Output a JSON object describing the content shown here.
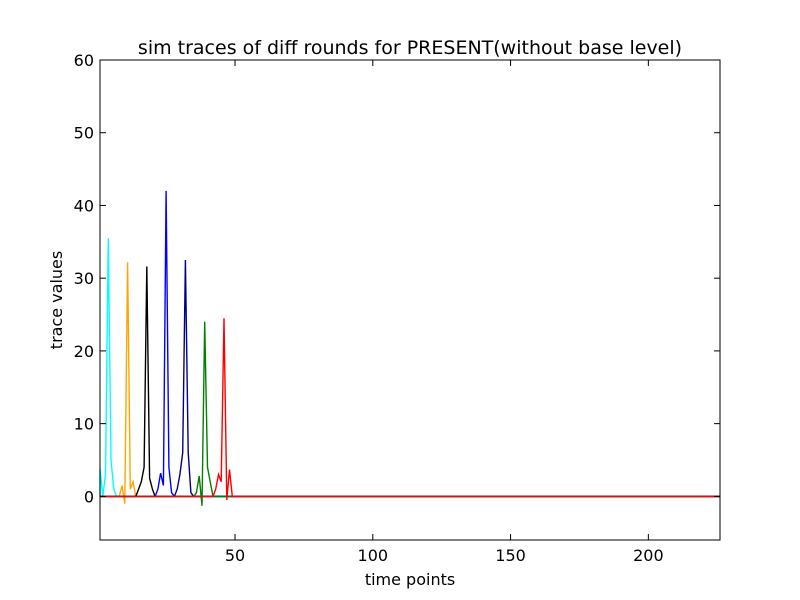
{
  "chart_data": {
    "type": "line",
    "title": "sim traces of diff rounds for PRESENT(without base level)",
    "xlabel": "time points",
    "ylabel": "trace values",
    "xlim": [
      1,
      226
    ],
    "ylim": [
      -6,
      60
    ],
    "xticks": [
      50,
      100,
      150,
      200
    ],
    "yticks": [
      0,
      10,
      20,
      30,
      40,
      50,
      60
    ],
    "grid": false,
    "legend": false,
    "x_end": 226,
    "series": [
      {
        "color": "#00ffff",
        "points": [
          [
            1,
            3.8
          ],
          [
            2,
            0
          ],
          [
            3,
            3
          ],
          [
            4,
            35.5
          ],
          [
            5,
            5
          ],
          [
            6,
            1
          ],
          [
            7,
            0
          ]
        ]
      },
      {
        "color": "#ffa500",
        "points": [
          [
            7,
            0
          ],
          [
            8,
            0
          ],
          [
            9,
            1.5
          ],
          [
            10,
            -1
          ],
          [
            11,
            32.2
          ],
          [
            12,
            1
          ],
          [
            13,
            2
          ],
          [
            14,
            0
          ]
        ]
      },
      {
        "color": "#000000",
        "points": [
          [
            14,
            0
          ],
          [
            15,
            1
          ],
          [
            16,
            2
          ],
          [
            17,
            4
          ],
          [
            18,
            31.6
          ],
          [
            19,
            2.5
          ],
          [
            20,
            1
          ],
          [
            21,
            0
          ]
        ]
      },
      {
        "color": "#0000ff",
        "points": [
          [
            21,
            0
          ],
          [
            22,
            1
          ],
          [
            23,
            3.2
          ],
          [
            24,
            1.5
          ],
          [
            25,
            42
          ],
          [
            26,
            4
          ],
          [
            27,
            0.5
          ],
          [
            28,
            0
          ]
        ]
      },
      {
        "color": "#00008b",
        "points": [
          [
            28,
            0
          ],
          [
            29,
            1
          ],
          [
            30,
            3
          ],
          [
            31,
            6
          ],
          [
            32,
            32.5
          ],
          [
            33,
            6
          ],
          [
            34,
            0.5
          ],
          [
            35,
            0
          ]
        ]
      },
      {
        "color": "#008000",
        "points": [
          [
            35,
            0
          ],
          [
            36,
            0.5
          ],
          [
            37,
            2.8
          ],
          [
            38,
            -1.3
          ],
          [
            39,
            24
          ],
          [
            40,
            4
          ],
          [
            41,
            2
          ],
          [
            42,
            0
          ]
        ]
      },
      {
        "color": "#ff0000",
        "points": [
          [
            42,
            0
          ],
          [
            43,
            1
          ],
          [
            44,
            3
          ],
          [
            45,
            2
          ],
          [
            46,
            24.5
          ],
          [
            47,
            -0.5
          ],
          [
            48,
            3.7
          ],
          [
            49,
            0
          ]
        ]
      }
    ]
  }
}
